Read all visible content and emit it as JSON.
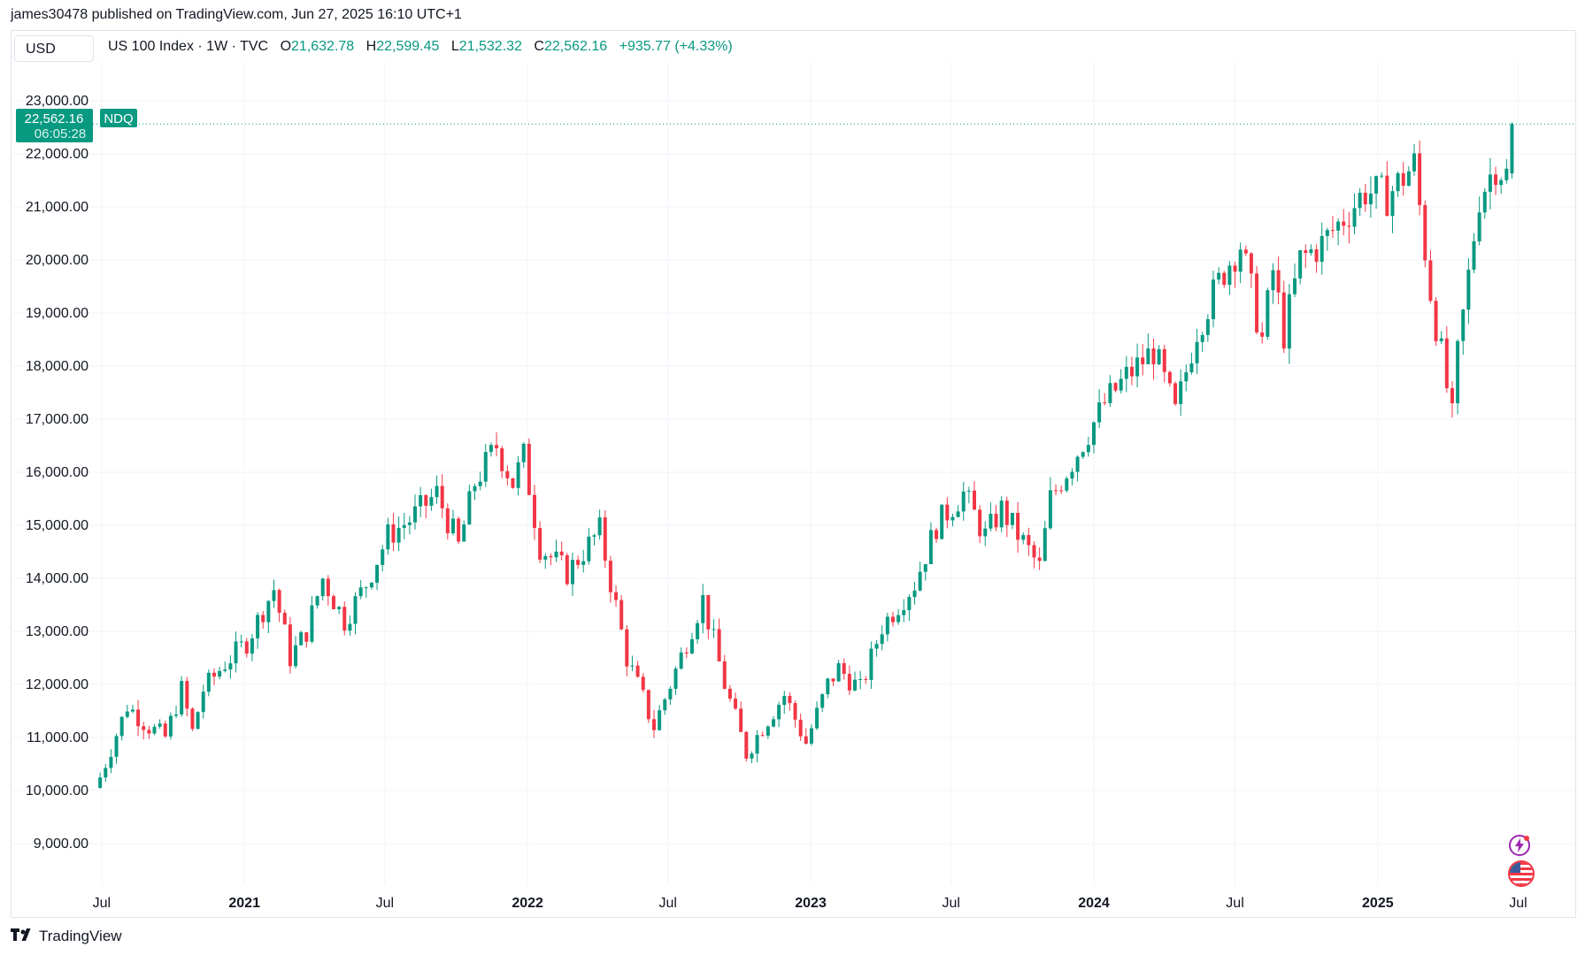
{
  "header": {
    "text": "james30478 published on TradingView.com, Jun 27, 2025 16:10 UTC+1"
  },
  "currency": "USD",
  "legend": {
    "symbol": "US 100 Index · 1W · TVC",
    "open_label": "O",
    "open": "21,632.78",
    "high_label": "H",
    "high": "22,599.45",
    "low_label": "L",
    "low": "21,532.32",
    "close_label": "C",
    "close": "22,562.16",
    "change": "+935.77 (+4.33%)"
  },
  "price_tag": {
    "value": "22,562.16",
    "countdown": "06:05:28",
    "label": "NDQ"
  },
  "footer": {
    "brand": "TradingView"
  },
  "icons": [
    "tv-logo-icon",
    "lightning-icon",
    "us-flag-icon"
  ],
  "colors": {
    "up": "#089981",
    "down": "#f23645",
    "grid": "#f0f3fa",
    "text": "#131722"
  },
  "chart_data": {
    "type": "candlestick",
    "interval": "1W",
    "y_ticks": [
      "9,000.00",
      "10,000.00",
      "11,000.00",
      "12,000.00",
      "13,000.00",
      "14,000.00",
      "15,000.00",
      "16,000.00",
      "17,000.00",
      "18,000.00",
      "19,000.00",
      "20,000.00",
      "21,000.00",
      "22,000.00",
      "23,000.00"
    ],
    "y_tick_values": [
      9000,
      10000,
      11000,
      12000,
      13000,
      14000,
      15000,
      16000,
      17000,
      18000,
      19000,
      20000,
      21000,
      22000,
      23000
    ],
    "x_ticks": [
      {
        "label": "Jul",
        "bold": false,
        "date": "2020-07-01"
      },
      {
        "label": "2021",
        "bold": true,
        "date": "2021-01-01"
      },
      {
        "label": "Jul",
        "bold": false,
        "date": "2021-07-01"
      },
      {
        "label": "2022",
        "bold": true,
        "date": "2022-01-01"
      },
      {
        "label": "Jul",
        "bold": false,
        "date": "2022-07-01"
      },
      {
        "label": "2023",
        "bold": true,
        "date": "2023-01-01"
      },
      {
        "label": "Jul",
        "bold": false,
        "date": "2023-07-01"
      },
      {
        "label": "2024",
        "bold": true,
        "date": "2024-01-01"
      },
      {
        "label": "Jul",
        "bold": false,
        "date": "2024-07-01"
      },
      {
        "label": "2025",
        "bold": true,
        "date": "2025-01-01"
      },
      {
        "label": "Jul",
        "bold": false,
        "date": "2025-07-01"
      }
    ],
    "x_range": [
      "2020-06-22",
      "2025-07-21"
    ],
    "ylim": [
      8600,
      23400
    ],
    "last_price": 22562.16,
    "grid": true,
    "closes": [
      {
        "date": "2020-06-29",
        "close": 10250
      },
      {
        "date": "2020-08-03",
        "close": 11600
      },
      {
        "date": "2020-08-31",
        "close": 11200
      },
      {
        "date": "2020-09-21",
        "close": 11000
      },
      {
        "date": "2020-10-12",
        "close": 11900
      },
      {
        "date": "2020-10-26",
        "close": 11100
      },
      {
        "date": "2020-11-09",
        "close": 11900
      },
      {
        "date": "2020-12-07",
        "close": 12400
      },
      {
        "date": "2021-01-04",
        "close": 12800
      },
      {
        "date": "2021-02-08",
        "close": 13800
      },
      {
        "date": "2021-03-01",
        "close": 12500
      },
      {
        "date": "2021-03-22",
        "close": 13000
      },
      {
        "date": "2021-04-12",
        "close": 14000
      },
      {
        "date": "2021-05-10",
        "close": 13200
      },
      {
        "date": "2021-06-07",
        "close": 13900
      },
      {
        "date": "2021-07-05",
        "close": 14800
      },
      {
        "date": "2021-08-02",
        "close": 15100
      },
      {
        "date": "2021-09-06",
        "close": 15600
      },
      {
        "date": "2021-10-04",
        "close": 14600
      },
      {
        "date": "2021-10-25",
        "close": 15800
      },
      {
        "date": "2021-11-22",
        "close": 16500
      },
      {
        "date": "2021-12-13",
        "close": 15800
      },
      {
        "date": "2021-12-27",
        "close": 16300
      },
      {
        "date": "2022-01-17",
        "close": 14600
      },
      {
        "date": "2022-02-21",
        "close": 14100
      },
      {
        "date": "2022-03-14",
        "close": 14500
      },
      {
        "date": "2022-04-04",
        "close": 14900
      },
      {
        "date": "2022-05-09",
        "close": 12500
      },
      {
        "date": "2022-06-13",
        "close": 11200
      },
      {
        "date": "2022-07-04",
        "close": 12000
      },
      {
        "date": "2022-08-15",
        "close": 13600
      },
      {
        "date": "2022-09-12",
        "close": 12000
      },
      {
        "date": "2022-10-10",
        "close": 10700
      },
      {
        "date": "2022-10-31",
        "close": 11200
      },
      {
        "date": "2022-11-28",
        "close": 11800
      },
      {
        "date": "2022-12-26",
        "close": 10900
      },
      {
        "date": "2023-01-23",
        "close": 12000
      },
      {
        "date": "2023-02-06",
        "close": 12300
      },
      {
        "date": "2023-03-06",
        "close": 11900
      },
      {
        "date": "2023-04-03",
        "close": 13100
      },
      {
        "date": "2023-05-15",
        "close": 13900
      },
      {
        "date": "2023-06-12",
        "close": 15000
      },
      {
        "date": "2023-07-17",
        "close": 15600
      },
      {
        "date": "2023-08-14",
        "close": 14800
      },
      {
        "date": "2023-09-04",
        "close": 15300
      },
      {
        "date": "2023-10-23",
        "close": 14200
      },
      {
        "date": "2023-11-06",
        "close": 15500
      },
      {
        "date": "2023-12-04",
        "close": 16200
      },
      {
        "date": "2024-01-15",
        "close": 17300
      },
      {
        "date": "2024-02-12",
        "close": 17800
      },
      {
        "date": "2024-03-18",
        "close": 18300
      },
      {
        "date": "2024-04-15",
        "close": 17100
      },
      {
        "date": "2024-05-13",
        "close": 18700
      },
      {
        "date": "2024-06-17",
        "close": 19800
      },
      {
        "date": "2024-07-08",
        "close": 20300
      },
      {
        "date": "2024-08-05",
        "close": 18500
      },
      {
        "date": "2024-08-19",
        "close": 19800
      },
      {
        "date": "2024-09-02",
        "close": 18600
      },
      {
        "date": "2024-09-23",
        "close": 20000
      },
      {
        "date": "2024-10-21",
        "close": 20300
      },
      {
        "date": "2024-11-18",
        "close": 20800
      },
      {
        "date": "2024-12-16",
        "close": 21300
      },
      {
        "date": "2025-01-13",
        "close": 21200
      },
      {
        "date": "2025-02-17",
        "close": 21800
      },
      {
        "date": "2025-03-10",
        "close": 19400
      },
      {
        "date": "2025-04-07",
        "close": 17000
      },
      {
        "date": "2025-04-14",
        "close": 18200
      },
      {
        "date": "2025-05-12",
        "close": 21200
      },
      {
        "date": "2025-06-02",
        "close": 21800
      },
      {
        "date": "2025-06-16",
        "close": 21600
      },
      {
        "date": "2025-06-23",
        "open": 21632.78,
        "high": 22599.45,
        "low": 21532.32,
        "close": 22562.16
      }
    ]
  }
}
